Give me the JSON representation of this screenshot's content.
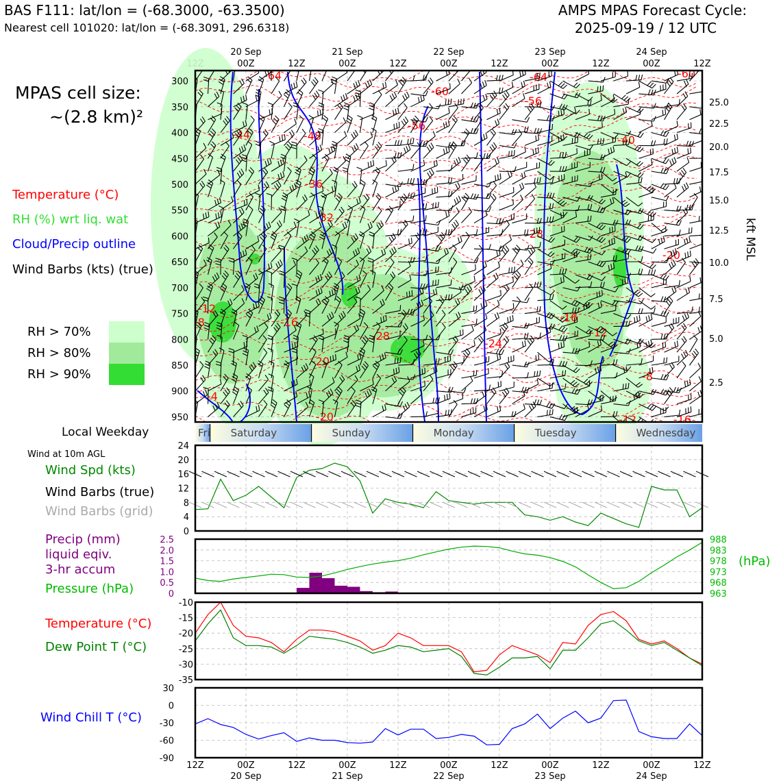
{
  "header": {
    "left_title": "BAS F111: lat/lon = (-68.3000, -63.3500)",
    "left_subtitle": "Nearest cell 101020: lat/lon = (-68.3091, 296.6318)",
    "right_title_line1": "AMPS MPAS Forecast Cycle:",
    "right_title_line2": "2025-09-19 / 12 UTC"
  },
  "cell_size": {
    "line1": "MPAS cell size:",
    "line2": "~(2.8 km)²"
  },
  "legend": {
    "temperature": "Temperature (°C)",
    "rh": "RH (%) wrt liq. wat",
    "cloud": "Cloud/Precip outline",
    "wind": "Wind Barbs (kts) (true)",
    "rh70": "RH > 70%",
    "rh80": "RH > 80%",
    "rh90": "RH > 90%"
  },
  "colors": {
    "temperature": "#ff0000",
    "rh_label": "#33dd33",
    "cloud": "#0000ff",
    "rh70": "#ccffcc",
    "rh80": "#a2ea9b",
    "rh90": "#33dd33",
    "precip": "#800080",
    "pressure": "#00aa00",
    "wind_speed": "#008800",
    "dew_point": "#008000",
    "wind_chill": "#0000ff",
    "grid_barbs": "#aaaaaa"
  },
  "top_axis": {
    "tick_labels": [
      "12Z",
      "00Z",
      "12Z",
      "00Z",
      "12Z",
      "00Z",
      "12Z",
      "00Z",
      "12Z",
      "00Z",
      "12Z"
    ],
    "date_labels": [
      "20 Sep",
      "21 Sep",
      "22 Sep",
      "23 Sep",
      "24 Sep"
    ]
  },
  "bottom_axis": {
    "tick_labels": [
      "12Z",
      "00Z",
      "12Z",
      "00Z",
      "12Z",
      "00Z",
      "12Z",
      "00Z",
      "12Z",
      "00Z",
      "12Z"
    ],
    "date_labels": [
      "20 Sep",
      "21 Sep",
      "22 Sep",
      "23 Sep",
      "24 Sep"
    ]
  },
  "pressure_levels": [
    "300",
    "350",
    "400",
    "450",
    "500",
    "550",
    "600",
    "650",
    "700",
    "750",
    "800",
    "850",
    "900",
    "950"
  ],
  "height_axis": {
    "label": "kft MSL",
    "ticks": [
      "25.0",
      "22.5",
      "20.0",
      "17.5",
      "15.0",
      "12.5",
      "10.0",
      "7.5",
      "5.0",
      "2.5"
    ]
  },
  "weekday": {
    "label": "Local Weekday",
    "days": [
      "Friday",
      "Saturday",
      "Sunday",
      "Monday",
      "Tuesday",
      "Wednesday"
    ]
  },
  "temp_contour_labels": [
    "-64",
    "-60",
    "-64",
    "-60",
    "-56",
    "-56",
    "-44",
    "-48",
    "-40",
    "-36",
    "-32",
    "-28",
    "-20",
    "-12",
    "-8",
    "-16",
    "-28",
    "-24",
    "-16",
    "-12",
    "-20",
    "-8",
    "-4",
    "-20",
    "-12",
    "-16"
  ],
  "wind_panel": {
    "title": "Wind at 10m AGL",
    "label_speed": "Wind Spd (kts)",
    "label_barbs": "Wind Barbs (true)",
    "label_grid": "Wind Barbs (grid)",
    "y_ticks": [
      "24",
      "20",
      "16",
      "12",
      "8",
      "4",
      "0"
    ]
  },
  "precip_panel": {
    "label1": "Precip (mm)",
    "label2": "liquid eqiv.",
    "label3": "3-hr accum",
    "label_pressure": "Pressure (hPa)",
    "left_ticks": [
      "2.5",
      "2.0",
      "1.5",
      "1.0",
      "0.5",
      "0"
    ],
    "right_ticks": [
      "988",
      "983",
      "978",
      "973",
      "968",
      "963"
    ],
    "right_unit": "(hPa)"
  },
  "temp_panel": {
    "label_temp": "Temperature (°C)",
    "label_dew": "Dew Point T (°C)",
    "y_ticks": [
      "-10",
      "-15",
      "-20",
      "-25",
      "-30",
      "-35"
    ]
  },
  "chill_panel": {
    "label": "Wind Chill T (°C)",
    "y_ticks": [
      "30",
      "0",
      "-30",
      "-60",
      "-90"
    ]
  },
  "chart_data": [
    {
      "type": "line",
      "title": "Wind at 10m AGL",
      "ylabel": "Wind Spd (kts)",
      "ylim": [
        0,
        24
      ],
      "x_hours": [
        0,
        3,
        6,
        9,
        12,
        15,
        18,
        21,
        24,
        27,
        30,
        33,
        36,
        39,
        42,
        45,
        48,
        51,
        54,
        57,
        60,
        63,
        66,
        69,
        72,
        75,
        78,
        81,
        84,
        87,
        90,
        93,
        96,
        99,
        102,
        105,
        108,
        111,
        114,
        117,
        120
      ],
      "series": [
        {
          "name": "Wind Spd (kts)",
          "values": [
            6,
            6.2,
            14.5,
            8.5,
            10,
            12.5,
            9.5,
            6.5,
            15,
            17,
            17.5,
            19,
            18,
            14,
            5,
            9,
            8,
            7.5,
            6.5,
            11,
            8.5,
            8,
            7.5,
            8,
            8,
            8,
            4.5,
            4,
            3,
            4,
            2.5,
            1.5,
            5,
            3.5,
            2,
            1,
            12.5,
            11.5,
            11.5,
            4,
            6.5
          ]
        }
      ]
    },
    {
      "type": "bar",
      "title": "Precip (mm) liquid eqiv. 3-hr accum",
      "ylim": [
        0,
        2.5
      ],
      "x_hours_start": [
        24,
        27,
        30,
        33,
        36,
        39,
        42,
        45
      ],
      "values": [
        0.25,
        0.95,
        0.7,
        0.35,
        0.3,
        0.1,
        0.05,
        0.08
      ]
    },
    {
      "type": "line",
      "title": "Pressure (hPa)",
      "ylim": [
        963,
        988
      ],
      "x_hours": [
        0,
        3,
        6,
        9,
        12,
        15,
        18,
        21,
        24,
        27,
        30,
        33,
        36,
        39,
        42,
        45,
        48,
        51,
        54,
        57,
        60,
        63,
        66,
        69,
        72,
        75,
        78,
        81,
        84,
        87,
        90,
        93,
        96,
        99,
        102,
        105,
        108,
        111,
        114,
        117,
        120
      ],
      "series": [
        {
          "name": "Pressure (hPa)",
          "values": [
            970,
            968.9,
            968.5,
            969.6,
            970.3,
            971,
            971.8,
            971.6,
            970.5,
            970.3,
            971,
            972.4,
            974,
            975.3,
            976.5,
            977.4,
            978.1,
            979.2,
            980.8,
            982.1,
            983.4,
            984.3,
            984.8,
            984.6,
            984,
            982.5,
            981.2,
            980.6,
            979.5,
            977.7,
            975.2,
            971.5,
            968,
            965.1,
            965.6,
            968.5,
            972.5,
            976,
            979.8,
            983,
            986.5
          ]
        }
      ]
    },
    {
      "type": "line",
      "title": "Temperature and Dew Point",
      "ylim": [
        -35,
        -10
      ],
      "x_hours": [
        0,
        3,
        6,
        9,
        12,
        15,
        18,
        21,
        24,
        27,
        30,
        33,
        36,
        39,
        42,
        45,
        48,
        51,
        54,
        57,
        60,
        63,
        66,
        69,
        72,
        75,
        78,
        81,
        84,
        87,
        90,
        93,
        96,
        99,
        102,
        105,
        108,
        111,
        114,
        117,
        120
      ],
      "series": [
        {
          "name": "Temperature (°C)",
          "values": [
            -20,
            -14,
            -10,
            -17.5,
            -21,
            -21.5,
            -23,
            -26,
            -22,
            -19,
            -19,
            -19.5,
            -21,
            -22.5,
            -25.5,
            -24,
            -20,
            -21.5,
            -24,
            -24,
            -24,
            -26,
            -32.5,
            -32,
            -27,
            -24,
            -25.5,
            -27,
            -29.5,
            -23,
            -23.5,
            -17.5,
            -14,
            -13,
            -16,
            -22,
            -23.5,
            -22.5,
            -25,
            -28,
            -30
          ]
        },
        {
          "name": "Dew Point T (°C)",
          "values": [
            -22.5,
            -17,
            -12.5,
            -21.5,
            -24,
            -24,
            -24.5,
            -26.5,
            -24,
            -21,
            -21.5,
            -22,
            -23,
            -24.5,
            -26.5,
            -25.5,
            -24,
            -24.5,
            -26,
            -25.5,
            -25,
            -27.5,
            -33,
            -33.5,
            -31,
            -28,
            -28,
            -27.5,
            -31.5,
            -25.5,
            -25.5,
            -21.5,
            -17,
            -16,
            -19,
            -22.5,
            -24,
            -23,
            -25.5,
            -28,
            -30.5
          ]
        }
      ]
    },
    {
      "type": "line",
      "title": "Wind Chill",
      "ylim": [
        -90,
        30
      ],
      "x_hours": [
        0,
        3,
        6,
        9,
        12,
        15,
        18,
        21,
        24,
        27,
        30,
        33,
        36,
        39,
        42,
        45,
        48,
        51,
        54,
        57,
        60,
        63,
        66,
        69,
        72,
        75,
        78,
        81,
        84,
        87,
        90,
        93,
        96,
        99,
        102,
        105,
        108,
        111,
        114,
        117,
        120
      ],
      "series": [
        {
          "name": "Wind Chill T (°C)",
          "values": [
            -32,
            -23,
            -33,
            -38,
            -50,
            -58,
            -52,
            -47,
            -62,
            -56,
            -60,
            -60,
            -64,
            -65,
            -63,
            -40,
            -51,
            -41,
            -41,
            -57,
            -55,
            -50,
            -53,
            -68,
            -67,
            -40,
            -32,
            -15,
            -40,
            -22,
            -10,
            -30,
            -22,
            8,
            9,
            -45,
            -54,
            -57,
            -57,
            -32,
            -52
          ]
        }
      ]
    }
  ]
}
